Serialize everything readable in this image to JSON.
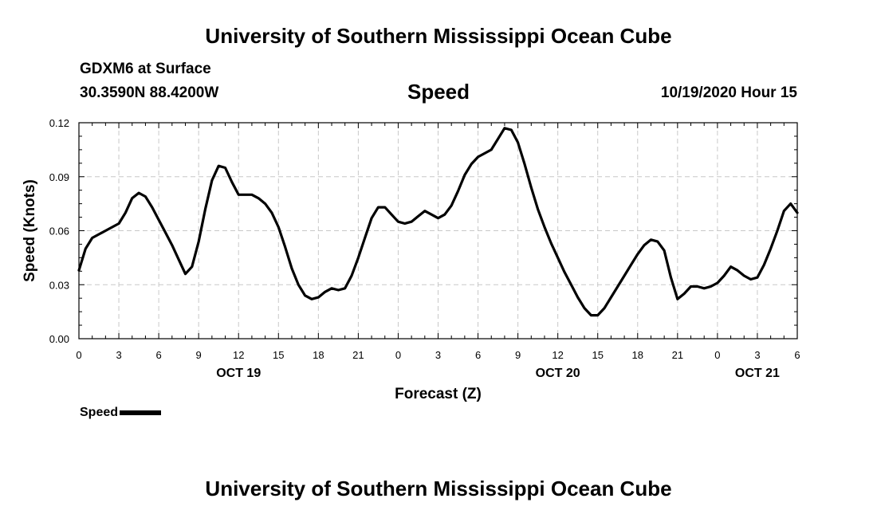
{
  "header": {
    "title": "University of Southern Mississippi Ocean Cube",
    "station": "GDXM6 at Surface",
    "coords": "30.3590N 88.4200W",
    "datetime": "10/19/2020 Hour 15"
  },
  "footer": {
    "title": "University of Southern Mississippi Ocean Cube"
  },
  "legend": {
    "label": "Speed"
  },
  "chart_data": {
    "type": "line",
    "title": "Speed",
    "xlabel": "Forecast (Z)",
    "ylabel": "Speed (Knots)",
    "ylim": [
      0,
      0.12
    ],
    "yticks": [
      "0.00",
      "0.03",
      "0.06",
      "0.09",
      "0.12"
    ],
    "xlim": [
      0,
      54
    ],
    "xtick_labels": [
      "0",
      "3",
      "6",
      "9",
      "12",
      "15",
      "18",
      "21",
      "0",
      "3",
      "6",
      "9",
      "12",
      "15",
      "18",
      "21",
      "0",
      "3",
      "6"
    ],
    "date_labels": [
      {
        "label": "OCT 19",
        "at_hour": 12
      },
      {
        "label": "OCT 20",
        "at_hour": 36
      },
      {
        "label": "OCT 21",
        "at_hour": 51
      }
    ],
    "grid": true,
    "series": [
      {
        "name": "Speed",
        "color": "#000000",
        "x": [
          0,
          0.5,
          1,
          1.5,
          2,
          2.5,
          3,
          3.5,
          4,
          4.5,
          5,
          5.5,
          6,
          6.5,
          7,
          7.5,
          8,
          8.5,
          9,
          9.5,
          10,
          10.5,
          11,
          11.5,
          12,
          12.5,
          13,
          13.5,
          14,
          14.5,
          15,
          15.5,
          16,
          16.5,
          17,
          17.5,
          18,
          18.5,
          19,
          19.5,
          20,
          20.5,
          21,
          21.5,
          22,
          22.5,
          23,
          23.5,
          24,
          24.5,
          25,
          25.5,
          26,
          26.5,
          27,
          27.5,
          28,
          28.5,
          29,
          29.5,
          30,
          30.5,
          31,
          31.5,
          32,
          32.5,
          33,
          33.5,
          34,
          34.5,
          35,
          35.5,
          36,
          36.5,
          37,
          37.5,
          38,
          38.5,
          39,
          39.5,
          40,
          40.5,
          41,
          41.5,
          42,
          42.5,
          43,
          43.5,
          44,
          44.5,
          45,
          45.5,
          46,
          46.5,
          47,
          47.5,
          48,
          48.5,
          49,
          49.5,
          50,
          50.5,
          51,
          51.5,
          52,
          52.5,
          53,
          53.5,
          54
        ],
        "y": [
          0.038,
          0.05,
          0.056,
          0.058,
          0.06,
          0.062,
          0.064,
          0.07,
          0.078,
          0.081,
          0.079,
          0.073,
          0.066,
          0.059,
          0.052,
          0.044,
          0.036,
          0.04,
          0.054,
          0.072,
          0.088,
          0.096,
          0.095,
          0.087,
          0.08,
          0.08,
          0.08,
          0.078,
          0.075,
          0.07,
          0.062,
          0.051,
          0.039,
          0.03,
          0.024,
          0.022,
          0.023,
          0.026,
          0.028,
          0.027,
          0.028,
          0.035,
          0.045,
          0.056,
          0.067,
          0.073,
          0.073,
          0.069,
          0.065,
          0.064,
          0.065,
          0.068,
          0.071,
          0.069,
          0.067,
          0.069,
          0.074,
          0.082,
          0.091,
          0.097,
          0.101,
          0.103,
          0.105,
          0.111,
          0.117,
          0.116,
          0.109,
          0.097,
          0.084,
          0.072,
          0.062,
          0.053,
          0.045,
          0.037,
          0.03,
          0.023,
          0.017,
          0.013,
          0.013,
          0.017,
          0.023,
          0.029,
          0.035,
          0.041,
          0.047,
          0.052,
          0.055,
          0.054,
          0.049,
          0.034,
          0.022,
          0.025,
          0.029,
          0.029,
          0.028,
          0.029,
          0.031,
          0.035,
          0.04,
          0.038,
          0.035,
          0.033,
          0.034,
          0.041,
          0.05,
          0.06,
          0.071,
          0.075,
          0.07
        ]
      }
    ]
  }
}
